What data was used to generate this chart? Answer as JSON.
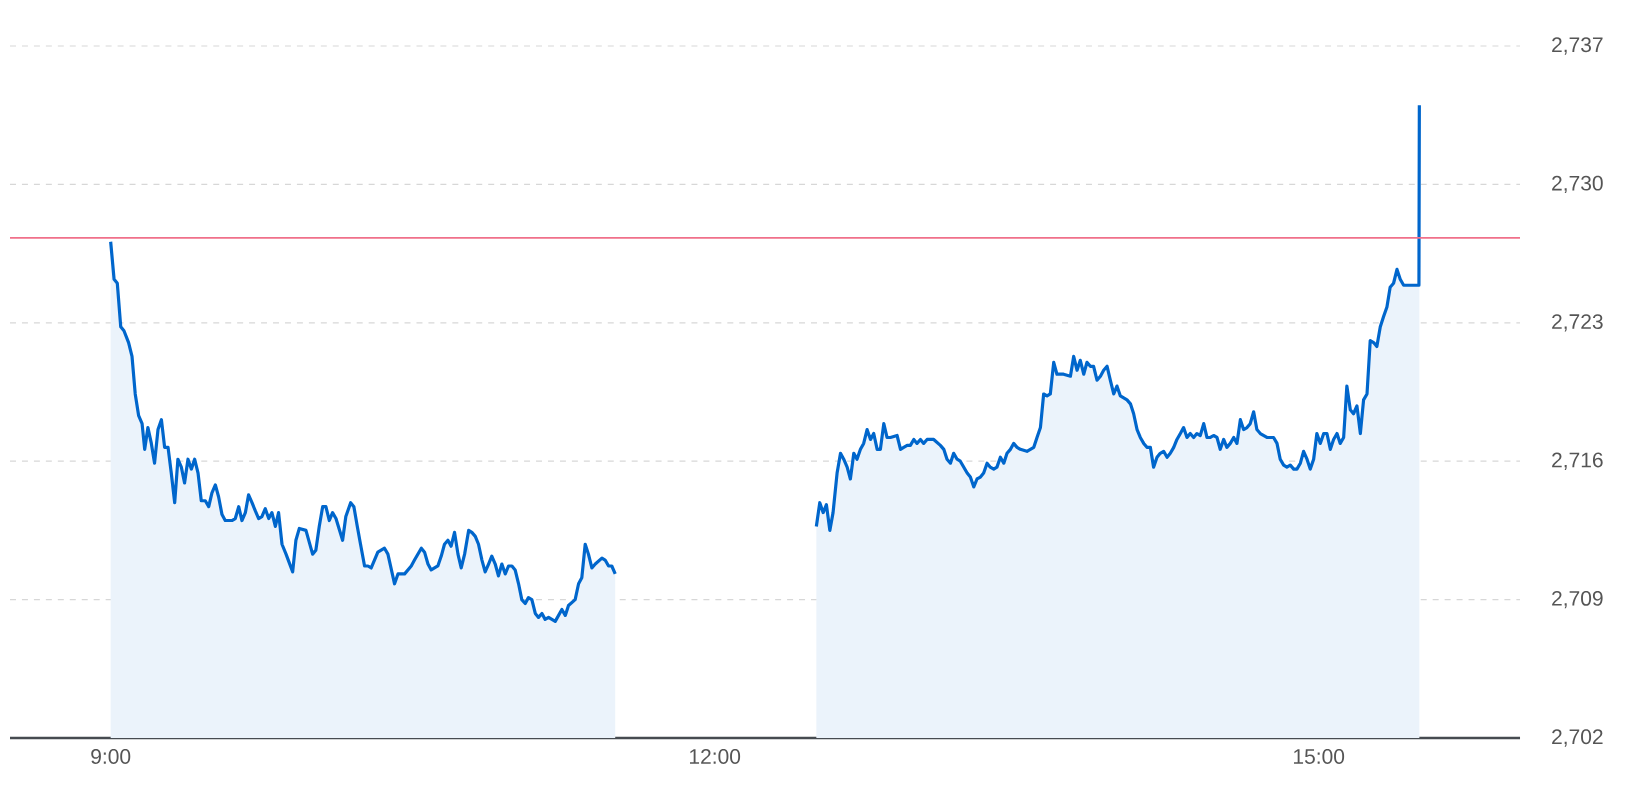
{
  "chart_data": {
    "type": "area",
    "x": [
      9.0,
      9.017,
      9.033,
      9.05,
      9.066,
      9.089,
      9.106,
      9.122,
      9.139,
      9.156,
      9.169,
      9.185,
      9.202,
      9.218,
      9.235,
      9.252,
      9.268,
      9.285,
      9.301,
      9.318,
      9.334,
      9.351,
      9.367,
      9.384,
      9.401,
      9.417,
      9.434,
      9.45,
      9.47,
      9.487,
      9.503,
      9.52,
      9.536,
      9.553,
      9.569,
      9.602,
      9.619,
      9.636,
      9.652,
      9.669,
      9.685,
      9.702,
      9.718,
      9.735,
      9.751,
      9.768,
      9.785,
      9.801,
      9.818,
      9.834,
      9.851,
      9.871,
      9.904,
      9.92,
      9.937,
      9.97,
      10.003,
      10.019,
      10.036,
      10.053,
      10.069,
      10.086,
      10.102,
      10.119,
      10.152,
      10.168,
      10.192,
      10.208,
      10.225,
      10.241,
      10.261,
      10.278,
      10.294,
      10.327,
      10.36,
      10.377,
      10.41,
      10.427,
      10.46,
      10.493,
      10.509,
      10.543,
      10.559,
      10.576,
      10.592,
      10.625,
      10.642,
      10.658,
      10.675,
      10.691,
      10.708,
      10.725,
      10.741,
      10.758,
      10.778,
      10.794,
      10.811,
      10.827,
      10.844,
      10.86,
      10.877,
      10.893,
      10.91,
      10.926,
      10.943,
      10.96,
      10.976,
      10.993,
      11.009,
      11.026,
      11.042,
      11.059,
      11.075,
      11.092,
      11.109,
      11.125,
      11.142,
      11.158,
      11.175,
      11.208,
      11.241,
      11.258,
      11.274,
      11.307,
      11.324,
      11.34,
      11.357,
      11.373,
      11.39,
      11.407,
      11.44,
      11.456,
      11.473,
      11.489,
      11.506,
      12.0,
      12.505,
      12.522,
      12.539,
      12.555,
      12.572,
      12.588,
      12.608,
      12.625,
      12.641,
      12.658,
      12.674,
      12.691,
      12.707,
      12.724,
      12.74,
      12.757,
      12.774,
      12.79,
      12.807,
      12.823,
      12.84,
      12.856,
      12.873,
      12.906,
      12.923,
      12.939,
      12.956,
      12.972,
      12.989,
      13.005,
      13.022,
      13.038,
      13.055,
      13.088,
      13.121,
      13.138,
      13.154,
      13.171,
      13.187,
      13.204,
      13.22,
      13.237,
      13.254,
      13.27,
      13.287,
      13.303,
      13.32,
      13.336,
      13.353,
      13.369,
      13.386,
      13.402,
      13.419,
      13.436,
      13.452,
      13.469,
      13.485,
      13.502,
      13.518,
      13.551,
      13.568,
      13.585,
      13.601,
      13.618,
      13.634,
      13.651,
      13.667,
      13.684,
      13.7,
      13.733,
      13.767,
      13.783,
      13.8,
      13.816,
      13.833,
      13.849,
      13.866,
      13.882,
      13.899,
      13.916,
      13.932,
      13.949,
      13.965,
      13.982,
      13.998,
      14.015,
      14.048,
      14.065,
      14.081,
      14.098,
      14.114,
      14.131,
      14.147,
      14.164,
      14.18,
      14.197,
      14.213,
      14.23,
      14.247,
      14.263,
      14.28,
      14.296,
      14.313,
      14.329,
      14.346,
      14.362,
      14.379,
      14.395,
      14.412,
      14.429,
      14.445,
      14.462,
      14.478,
      14.495,
      14.511,
      14.528,
      14.544,
      14.561,
      14.578,
      14.594,
      14.611,
      14.627,
      14.644,
      14.66,
      14.677,
      14.693,
      14.71,
      14.743,
      14.776,
      14.793,
      14.809,
      14.826,
      14.842,
      14.859,
      14.876,
      14.892,
      14.909,
      14.925,
      14.942,
      14.958,
      14.975,
      14.991,
      15.008,
      15.025,
      15.041,
      15.058,
      15.074,
      15.091,
      15.107,
      15.124,
      15.14,
      15.157,
      15.173,
      15.19,
      15.207,
      15.223,
      15.24,
      15.256,
      15.273,
      15.289,
      15.306,
      15.322,
      15.339,
      15.355,
      15.372,
      15.389,
      15.405,
      15.422,
      15.498,
      15.5
    ],
    "series": [
      {
        "color": "#0066cc",
        "values": [
          2727.1,
          2725.2,
          2725.0,
          2722.8,
          2722.6,
          2722.0,
          2721.3,
          2719.4,
          2718.3,
          2717.9,
          2716.6,
          2717.7,
          2716.9,
          2715.9,
          2717.6,
          2718.1,
          2716.7,
          2716.7,
          2715.4,
          2713.9,
          2716.1,
          2715.7,
          2714.9,
          2716.1,
          2715.6,
          2716.1,
          2715.4,
          2714.0,
          2714.0,
          2713.7,
          2714.4,
          2714.8,
          2714.2,
          2713.3,
          2713.0,
          2713.0,
          2713.1,
          2713.7,
          2713.0,
          2713.4,
          2714.3,
          2713.9,
          2713.5,
          2713.1,
          2713.2,
          2713.6,
          2713.1,
          2713.4,
          2712.7,
          2713.4,
          2711.8,
          2711.3,
          2710.4,
          2712.0,
          2712.6,
          2712.5,
          2711.3,
          2711.5,
          2712.7,
          2713.7,
          2713.7,
          2713.0,
          2713.4,
          2713.1,
          2712.0,
          2713.2,
          2713.9,
          2713.7,
          2712.7,
          2711.8,
          2710.7,
          2710.7,
          2710.6,
          2711.4,
          2711.6,
          2711.3,
          2709.8,
          2710.3,
          2710.3,
          2710.7,
          2711.0,
          2711.6,
          2711.4,
          2710.8,
          2710.5,
          2710.7,
          2711.2,
          2711.8,
          2712.0,
          2711.7,
          2712.4,
          2711.3,
          2710.6,
          2711.3,
          2712.5,
          2712.4,
          2712.2,
          2711.8,
          2711.0,
          2710.4,
          2710.8,
          2711.2,
          2710.8,
          2710.2,
          2710.8,
          2710.3,
          2710.7,
          2710.7,
          2710.5,
          2709.8,
          2709.0,
          2708.8,
          2709.1,
          2709.0,
          2708.3,
          2708.1,
          2708.3,
          2708.0,
          2708.1,
          2707.9,
          2708.5,
          2708.2,
          2708.7,
          2709.0,
          2709.8,
          2710.1,
          2711.8,
          2711.3,
          2710.6,
          2710.8,
          2711.1,
          2711.0,
          2710.7,
          2710.7,
          2710.3,
          null,
          2712.7,
          2713.9,
          2713.4,
          2713.8,
          2712.5,
          2713.4,
          2715.4,
          2716.4,
          2716.1,
          2715.7,
          2715.1,
          2716.4,
          2716.1,
          2716.6,
          2716.9,
          2717.6,
          2717.1,
          2717.4,
          2716.6,
          2716.6,
          2717.9,
          2717.2,
          2717.2,
          2717.3,
          2716.6,
          2716.7,
          2716.8,
          2716.8,
          2717.1,
          2716.9,
          2717.1,
          2716.9,
          2717.1,
          2717.1,
          2716.8,
          2716.6,
          2716.1,
          2715.9,
          2716.4,
          2716.1,
          2716.0,
          2715.7,
          2715.4,
          2715.2,
          2714.7,
          2715.1,
          2715.2,
          2715.4,
          2715.9,
          2715.7,
          2715.6,
          2715.7,
          2716.2,
          2715.9,
          2716.4,
          2716.6,
          2716.9,
          2716.7,
          2716.6,
          2716.5,
          2716.6,
          2716.7,
          2717.2,
          2717.7,
          2719.4,
          2719.3,
          2719.4,
          2721.0,
          2720.4,
          2720.4,
          2720.3,
          2721.3,
          2720.6,
          2721.1,
          2720.4,
          2721.0,
          2720.8,
          2720.8,
          2720.1,
          2720.3,
          2720.6,
          2720.8,
          2720.1,
          2719.4,
          2719.8,
          2719.3,
          2719.1,
          2718.9,
          2718.4,
          2717.6,
          2717.2,
          2716.9,
          2716.7,
          2716.7,
          2715.7,
          2716.2,
          2716.4,
          2716.5,
          2716.2,
          2716.4,
          2716.7,
          2717.1,
          2717.4,
          2717.7,
          2717.2,
          2717.4,
          2717.2,
          2717.4,
          2717.3,
          2717.9,
          2717.2,
          2717.2,
          2717.3,
          2717.2,
          2716.6,
          2717.1,
          2716.7,
          2716.9,
          2717.2,
          2716.9,
          2718.1,
          2717.6,
          2717.7,
          2717.9,
          2718.5,
          2717.6,
          2717.4,
          2717.2,
          2717.2,
          2716.9,
          2716.1,
          2715.8,
          2715.7,
          2715.8,
          2715.6,
          2715.6,
          2715.9,
          2716.5,
          2716.1,
          2715.6,
          2716.1,
          2717.4,
          2716.9,
          2717.4,
          2717.4,
          2716.6,
          2717.1,
          2717.4,
          2716.9,
          2717.2,
          2719.8,
          2718.6,
          2718.4,
          2718.8,
          2717.4,
          2719.1,
          2719.4,
          2722.1,
          2722.0,
          2721.8,
          2722.8,
          2723.3,
          2723.8,
          2724.8,
          2725.0,
          2725.7,
          2725.2,
          2724.9,
          2724.9,
          2734.0
        ]
      }
    ],
    "xlim": [
      8.5,
      16
    ],
    "ylim": [
      2702,
      2737
    ],
    "xticks": [
      {
        "value": 9,
        "label": "9:00"
      },
      {
        "value": 12,
        "label": "12:00"
      },
      {
        "value": 15,
        "label": "15:00"
      }
    ],
    "yticks": [
      {
        "value": 2702,
        "label": "2,702"
      },
      {
        "value": 2709,
        "label": "2,709"
      },
      {
        "value": 2716,
        "label": "2,716"
      },
      {
        "value": 2723,
        "label": "2,723"
      },
      {
        "value": 2730,
        "label": "2,730"
      },
      {
        "value": 2737,
        "label": "2,737"
      }
    ],
    "grid": "y",
    "ref_lines": [
      {
        "axis": "y",
        "value": 2727.3,
        "color": "#f0708a"
      }
    ]
  }
}
